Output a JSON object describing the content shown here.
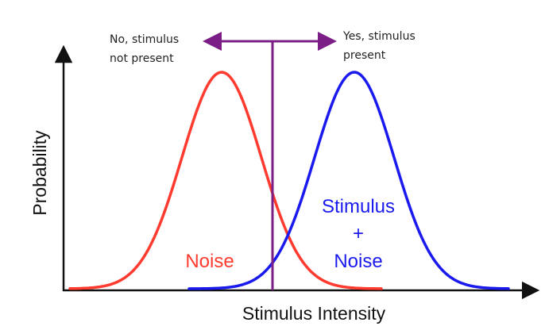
{
  "axes": {
    "x_label": "Stimulus Intensity",
    "y_label": "Probability"
  },
  "criterion": {
    "left_label_line1": "No, stimulus",
    "left_label_line2": "not present",
    "right_label_line1": "Yes, stimulus",
    "right_label_line2": "present"
  },
  "noise_curve": {
    "label": "Noise"
  },
  "signal_curve": {
    "label_line1": "Stimulus",
    "label_line2": "+",
    "label_line3": "Noise"
  },
  "colors": {
    "noise": "#ff3b2f",
    "signal": "#1a1aee",
    "criterion": "#7b1f86",
    "axis": "#111111"
  }
}
